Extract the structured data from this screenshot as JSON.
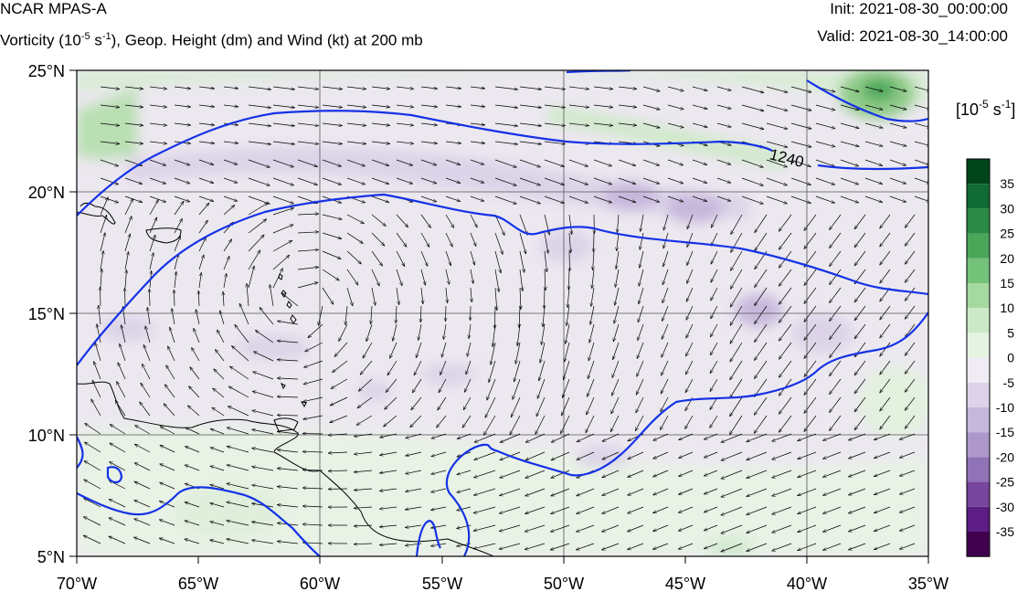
{
  "header": {
    "model_title": "NCAR MPAS-A",
    "fields_title_prefix": "Vorticity (10",
    "fields_title_exp": "-5",
    "fields_title_mid": " s",
    "fields_title_exp2": "-1",
    "fields_title_suffix": "), Geop. Height (dm) and Wind (kt) at 200 mb",
    "init": "Init: 2021-08-30_00:00:00",
    "valid": "Valid: 2021-08-30_14:00:00"
  },
  "map": {
    "lat_labels": [
      "25°N",
      "20°N",
      "15°N",
      "10°N",
      "5°N"
    ],
    "lon_labels": [
      "70°W",
      "65°W",
      "60°W",
      "55°W",
      "50°W",
      "45°W",
      "40°W",
      "35°W"
    ],
    "contour_label": "1240",
    "colors": {
      "height_contour": "#1432e6",
      "coastline": "#000000",
      "grid": "#555555"
    }
  },
  "colorbar": {
    "unit_prefix": "[10",
    "unit_exp": "-5",
    "unit_mid": " s",
    "unit_exp2": "-1",
    "unit_suffix": "]",
    "labels": [
      "35",
      "30",
      "25",
      "20",
      "15",
      "10",
      "5",
      "0",
      "-5",
      "-10",
      "-15",
      "-20",
      "-25",
      "-30",
      "-35"
    ],
    "colors": [
      "#00441b",
      "#116b34",
      "#2b8a46",
      "#4aa75a",
      "#74c27a",
      "#a5d9a0",
      "#cbe9c6",
      "#e6f3e3",
      "#f0ecf3",
      "#dcd3e8",
      "#c6b7dc",
      "#ad97cb",
      "#9072b6",
      "#76459c",
      "#5c1d84",
      "#40004b"
    ]
  }
}
